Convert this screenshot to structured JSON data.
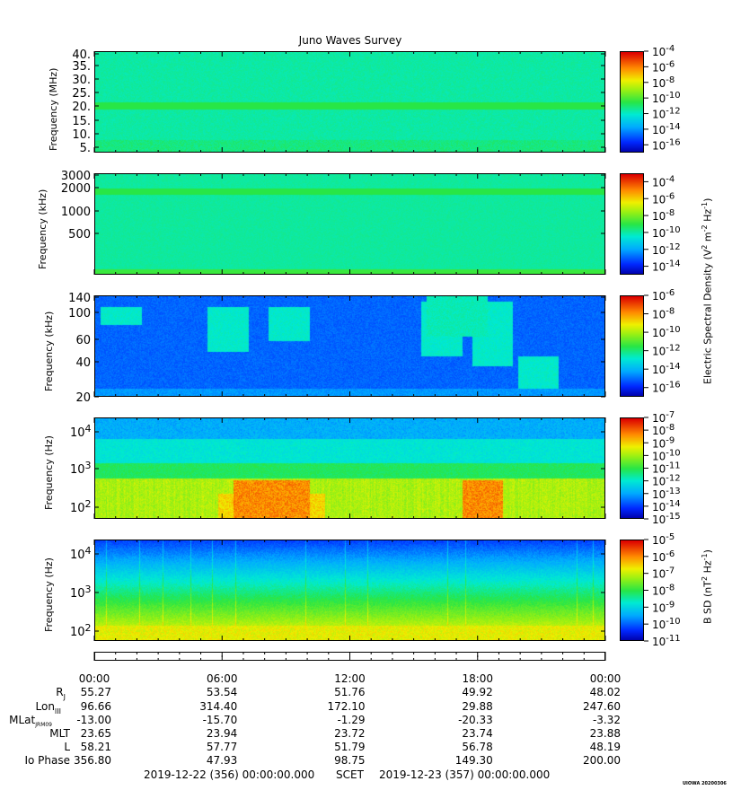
{
  "title": "Juno Waves Survey",
  "chart_data": [
    {
      "type": "heatmap",
      "ylabel": "Frequency (MHz)",
      "ytick_labels": [
        "40.",
        "35.",
        "30.",
        "25.",
        "20.",
        "15.",
        "10.",
        "5."
      ],
      "ylim": [
        3,
        41
      ],
      "yscale": "linear",
      "colorbar_ticks": [
        "10-4",
        "10-6",
        "10-8",
        "10-10",
        "10-12",
        "10-14",
        "10-16"
      ],
      "colorbar_range": [
        -17,
        -4
      ]
    },
    {
      "type": "heatmap",
      "ylabel": "Frequency (kHz)",
      "ytick_labels": [
        "3000",
        "2000",
        "1000",
        "500"
      ],
      "yscale": "log",
      "colorbar_ticks": [
        "10-4",
        "10-6",
        "10-8",
        "10-10",
        "10-12",
        "10-14"
      ],
      "colorbar_range": [
        -15,
        -3
      ],
      "colorbar_label": "Electric Spectral Density (V2 m-2 Hz-1)"
    },
    {
      "type": "heatmap",
      "ylabel": "Frequency (kHz)",
      "ytick_labels": [
        "140",
        "100",
        "60",
        "40",
        "20"
      ],
      "yscale": "log",
      "colorbar_ticks": [
        "10-6",
        "10-8",
        "10-10",
        "10-12",
        "10-14",
        "10-16"
      ],
      "colorbar_range": [
        -17,
        -6
      ]
    },
    {
      "type": "heatmap",
      "ylabel": "Frequency (Hz)",
      "ytick_labels": [
        "104",
        "103",
        "102"
      ],
      "yscale": "log",
      "colorbar_ticks": [
        "10-7",
        "10-8",
        "10-9",
        "10-10",
        "10-11",
        "10-12",
        "10-13",
        "10-14",
        "10-15"
      ],
      "colorbar_range": [
        -15,
        -7
      ]
    },
    {
      "type": "heatmap",
      "ylabel": "Frequency (Hz)",
      "ytick_labels": [
        "104",
        "103",
        "102"
      ],
      "yscale": "log",
      "colorbar_ticks": [
        "10-5",
        "10-6",
        "10-7",
        "10-8",
        "10-9",
        "10-10",
        "10-11"
      ],
      "colorbar_range": [
        -11,
        -5
      ],
      "colorbar_label": "B SD (nT2 Hz-1)"
    }
  ],
  "x_axis": {
    "ticks": [
      "00:00",
      "06:00",
      "12:00",
      "18:00",
      "00:00"
    ]
  },
  "ephemeris": {
    "rows": [
      {
        "label": "Rj",
        "values": [
          "55.27",
          "53.54",
          "51.76",
          "49.92",
          "48.02"
        ]
      },
      {
        "label": "LonIII",
        "values": [
          "96.66",
          "314.40",
          "172.10",
          "29.88",
          "247.60"
        ]
      },
      {
        "label": "MLatJRM09",
        "values": [
          "-13.00",
          "-15.70",
          "-1.29",
          "-20.33",
          "-3.32"
        ]
      },
      {
        "label": "MLT",
        "values": [
          "23.65",
          "23.94",
          "23.72",
          "23.74",
          "23.88"
        ]
      },
      {
        "label": "L",
        "values": [
          "58.21",
          "57.77",
          "51.79",
          "56.78",
          "48.19"
        ]
      },
      {
        "label": "Io Phase",
        "values": [
          "356.80",
          "47.93",
          "98.75",
          "149.30",
          "200.00"
        ]
      }
    ]
  },
  "footer": {
    "start": "2019-12-22 (356) 00:00:00.000",
    "scet": "SCET",
    "end": "2019-12-23 (357) 00:00:00.000",
    "stamp": "UIOWA 20200306"
  },
  "colors": {
    "low": "#0000c8",
    "mid": "#00e0c0",
    "green": "#20e040",
    "yellow": "#f0f000",
    "high": "#e00000"
  }
}
